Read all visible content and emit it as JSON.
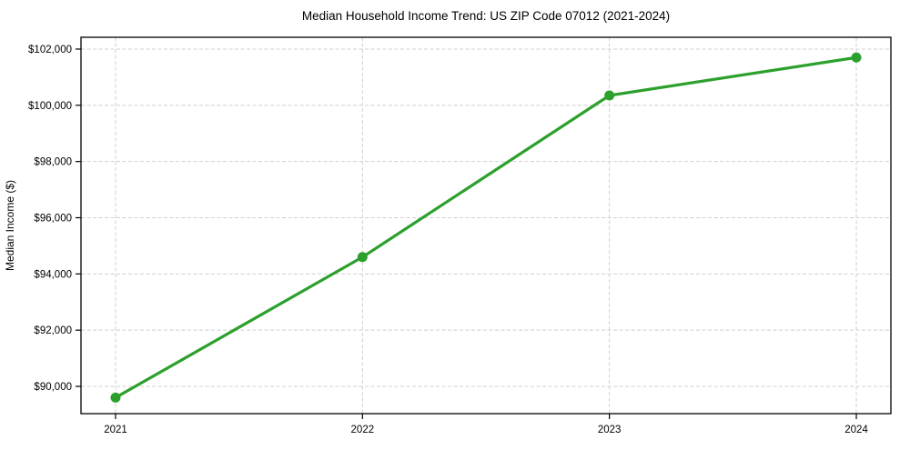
{
  "chart_data": {
    "type": "line",
    "title": "Median Household Income Trend: US ZIP Code 07012 (2021-2024)",
    "xlabel": "",
    "ylabel": "Median Income ($)",
    "x": [
      2021,
      2022,
      2023,
      2024
    ],
    "series": [
      {
        "name": "Median Household Income",
        "values": [
          89600,
          94600,
          100350,
          101700
        ],
        "color": "#2ca02c",
        "marker": "circle"
      }
    ],
    "x_tick_labels": [
      "2021",
      "2022",
      "2023",
      "2024"
    ],
    "y_ticks": [
      90000,
      92000,
      94000,
      96000,
      98000,
      100000,
      102000
    ],
    "y_tick_labels": [
      "$90,000",
      "$92,000",
      "$94,000",
      "$96,000",
      "$98,000",
      "$100,000",
      "$102,000"
    ],
    "xlim": [
      2020.86,
      2024.14
    ],
    "ylim": [
      89030,
      102420
    ],
    "grid": true,
    "grid_style": "dashed",
    "legend": "none",
    "colors": {
      "line": "#2ca02c",
      "grid": "#cfcfcf",
      "axis": "#000000",
      "text": "#000000",
      "background": "#ffffff"
    }
  }
}
